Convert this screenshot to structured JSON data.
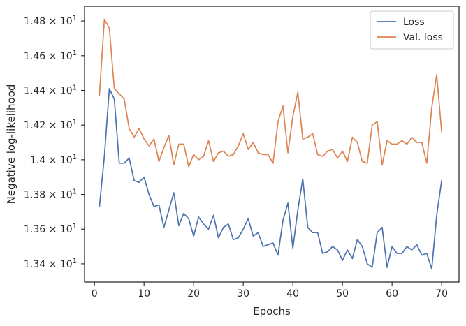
{
  "chart_data": {
    "type": "line",
    "title": "",
    "xlabel": "Epochs",
    "ylabel": "Negative log-likelihood",
    "xlim": [
      -2,
      73.5
    ],
    "ylim": [
      13.295,
      14.885
    ],
    "grid": false,
    "legend_position": "top-right",
    "x_ticks": [
      {
        "value": 0,
        "label": "0"
      },
      {
        "value": 10,
        "label": "10"
      },
      {
        "value": 20,
        "label": "20"
      },
      {
        "value": 30,
        "label": "30"
      },
      {
        "value": 40,
        "label": "40"
      },
      {
        "value": 50,
        "label": "50"
      },
      {
        "value": 60,
        "label": "60"
      },
      {
        "value": 70,
        "label": "70"
      }
    ],
    "y_ticks": [
      {
        "value": 13.4,
        "mantissa": "1.34",
        "base": "10",
        "exp": "1"
      },
      {
        "value": 13.6,
        "mantissa": "1.36",
        "base": "10",
        "exp": "1"
      },
      {
        "value": 13.8,
        "mantissa": "1.38",
        "base": "10",
        "exp": "1"
      },
      {
        "value": 14.0,
        "mantissa": "1.4",
        "base": "10",
        "exp": "1"
      },
      {
        "value": 14.2,
        "mantissa": "1.42",
        "base": "10",
        "exp": "1"
      },
      {
        "value": 14.4,
        "mantissa": "1.44",
        "base": "10",
        "exp": "1"
      },
      {
        "value": 14.6,
        "mantissa": "1.46",
        "base": "10",
        "exp": "1"
      },
      {
        "value": 14.8,
        "mantissa": "1.48",
        "base": "10",
        "exp": "1"
      }
    ],
    "x": [
      1,
      2,
      3,
      4,
      5,
      6,
      7,
      8,
      9,
      10,
      11,
      12,
      13,
      14,
      15,
      16,
      17,
      18,
      19,
      20,
      21,
      22,
      23,
      24,
      25,
      26,
      27,
      28,
      29,
      30,
      31,
      32,
      33,
      34,
      35,
      36,
      37,
      38,
      39,
      40,
      41,
      42,
      43,
      44,
      45,
      46,
      47,
      48,
      49,
      50,
      51,
      52,
      53,
      54,
      55,
      56,
      57,
      58,
      59,
      60,
      61,
      62,
      63,
      64,
      65,
      66,
      67,
      68,
      69,
      70
    ],
    "series": [
      {
        "name": "Loss",
        "color": "#4c72b0",
        "values": [
          13.73,
          14.02,
          14.41,
          14.35,
          13.98,
          13.98,
          14.01,
          13.88,
          13.87,
          13.9,
          13.8,
          13.73,
          13.74,
          13.61,
          13.71,
          13.81,
          13.62,
          13.69,
          13.66,
          13.56,
          13.67,
          13.63,
          13.6,
          13.68,
          13.55,
          13.61,
          13.63,
          13.54,
          13.55,
          13.6,
          13.66,
          13.56,
          13.58,
          13.5,
          13.51,
          13.52,
          13.45,
          13.65,
          13.75,
          13.49,
          13.71,
          13.89,
          13.61,
          13.58,
          13.58,
          13.46,
          13.47,
          13.5,
          13.48,
          13.42,
          13.48,
          13.43,
          13.54,
          13.5,
          13.4,
          13.38,
          13.58,
          13.61,
          13.38,
          13.5,
          13.46,
          13.46,
          13.5,
          13.48,
          13.51,
          13.45,
          13.46,
          13.37,
          13.68,
          13.88
        ]
      },
      {
        "name": "Val. loss",
        "color": "#dd8452",
        "values": [
          14.37,
          14.81,
          14.76,
          14.41,
          14.38,
          14.35,
          14.18,
          14.13,
          14.18,
          14.12,
          14.08,
          14.12,
          13.99,
          14.07,
          14.14,
          13.97,
          14.09,
          14.09,
          13.96,
          14.03,
          14.0,
          14.02,
          14.11,
          13.99,
          14.04,
          14.05,
          14.02,
          14.03,
          14.08,
          14.15,
          14.06,
          14.1,
          14.04,
          14.03,
          14.03,
          13.98,
          14.22,
          14.31,
          14.04,
          14.25,
          14.39,
          14.12,
          14.13,
          14.15,
          14.03,
          14.02,
          14.05,
          14.06,
          14.01,
          14.05,
          13.99,
          14.13,
          14.1,
          13.99,
          13.98,
          14.2,
          14.22,
          13.97,
          14.11,
          14.09,
          14.09,
          14.11,
          14.09,
          14.13,
          14.1,
          14.1,
          13.98,
          14.3,
          14.49,
          14.16
        ]
      }
    ]
  }
}
